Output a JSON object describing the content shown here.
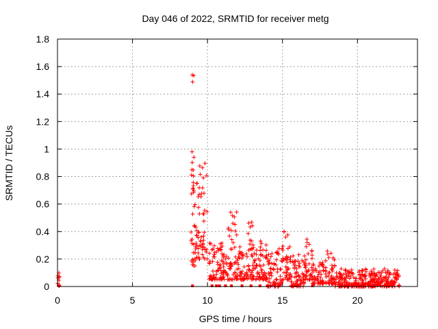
{
  "chart_data": {
    "type": "scatter",
    "title": "Day 046 of 2022, SRMTID for receiver metg",
    "xlabel": "GPS time / hours",
    "ylabel": "SRMTID / TECUs",
    "xlim": [
      0,
      24.0
    ],
    "ylim": [
      0,
      1.8
    ],
    "xticks": [
      0,
      5,
      10,
      15,
      20
    ],
    "yticks": [
      0,
      0.2,
      0.4,
      0.6,
      0.8,
      1,
      1.2,
      1.4,
      1.6,
      1.8
    ],
    "xtick_labels": [
      "0",
      "5",
      "10",
      "15",
      "20"
    ],
    "ytick_labels": [
      "0",
      "0.2",
      "0.4",
      "0.6",
      "0.8",
      "1",
      "1.2",
      "1.4",
      "1.6",
      "1.8"
    ],
    "grid": true,
    "marker": "+",
    "series_color": "#ff0000",
    "bands": [
      {
        "x": [
          0.0,
          0.15
        ],
        "y": [
          0.0,
          0.1
        ]
      },
      {
        "x": [
          8.9,
          9.1
        ],
        "y": [
          0.7,
          1.8
        ]
      },
      {
        "x": [
          8.9,
          9.3
        ],
        "y": [
          0.15,
          0.75
        ]
      },
      {
        "x": [
          9.2,
          10.0
        ],
        "y": [
          0.2,
          0.9
        ]
      },
      {
        "x": [
          10.1,
          11.3
        ],
        "y": [
          0.05,
          0.32
        ]
      },
      {
        "x": [
          11.3,
          12.0
        ],
        "y": [
          0.05,
          0.58
        ]
      },
      {
        "x": [
          12.0,
          12.5
        ],
        "y": [
          0.05,
          0.3
        ]
      },
      {
        "x": [
          12.5,
          13.0
        ],
        "y": [
          0.05,
          0.47
        ]
      },
      {
        "x": [
          13.0,
          14.0
        ],
        "y": [
          0.05,
          0.35
        ]
      },
      {
        "x": [
          14.0,
          15.0
        ],
        "y": [
          0.0,
          0.3
        ]
      },
      {
        "x": [
          15.0,
          15.5
        ],
        "y": [
          0.05,
          0.42
        ]
      },
      {
        "x": [
          15.5,
          16.5
        ],
        "y": [
          0.0,
          0.25
        ]
      },
      {
        "x": [
          16.5,
          17.0
        ],
        "y": [
          0.05,
          0.37
        ]
      },
      {
        "x": [
          17.0,
          17.8
        ],
        "y": [
          0.02,
          0.18
        ]
      },
      {
        "x": [
          17.8,
          18.5
        ],
        "y": [
          0.02,
          0.26
        ]
      },
      {
        "x": [
          18.5,
          21.0
        ],
        "y": [
          0.0,
          0.13
        ]
      },
      {
        "x": [
          21.0,
          22.8
        ],
        "y": [
          0.0,
          0.13
        ]
      }
    ],
    "zero_points": [
      9.0,
      10.3,
      10.6,
      10.8,
      11.2,
      11.6,
      12.3,
      12.9,
      13.5,
      14.0,
      14.8,
      15.8,
      16.0,
      17.0
    ]
  }
}
